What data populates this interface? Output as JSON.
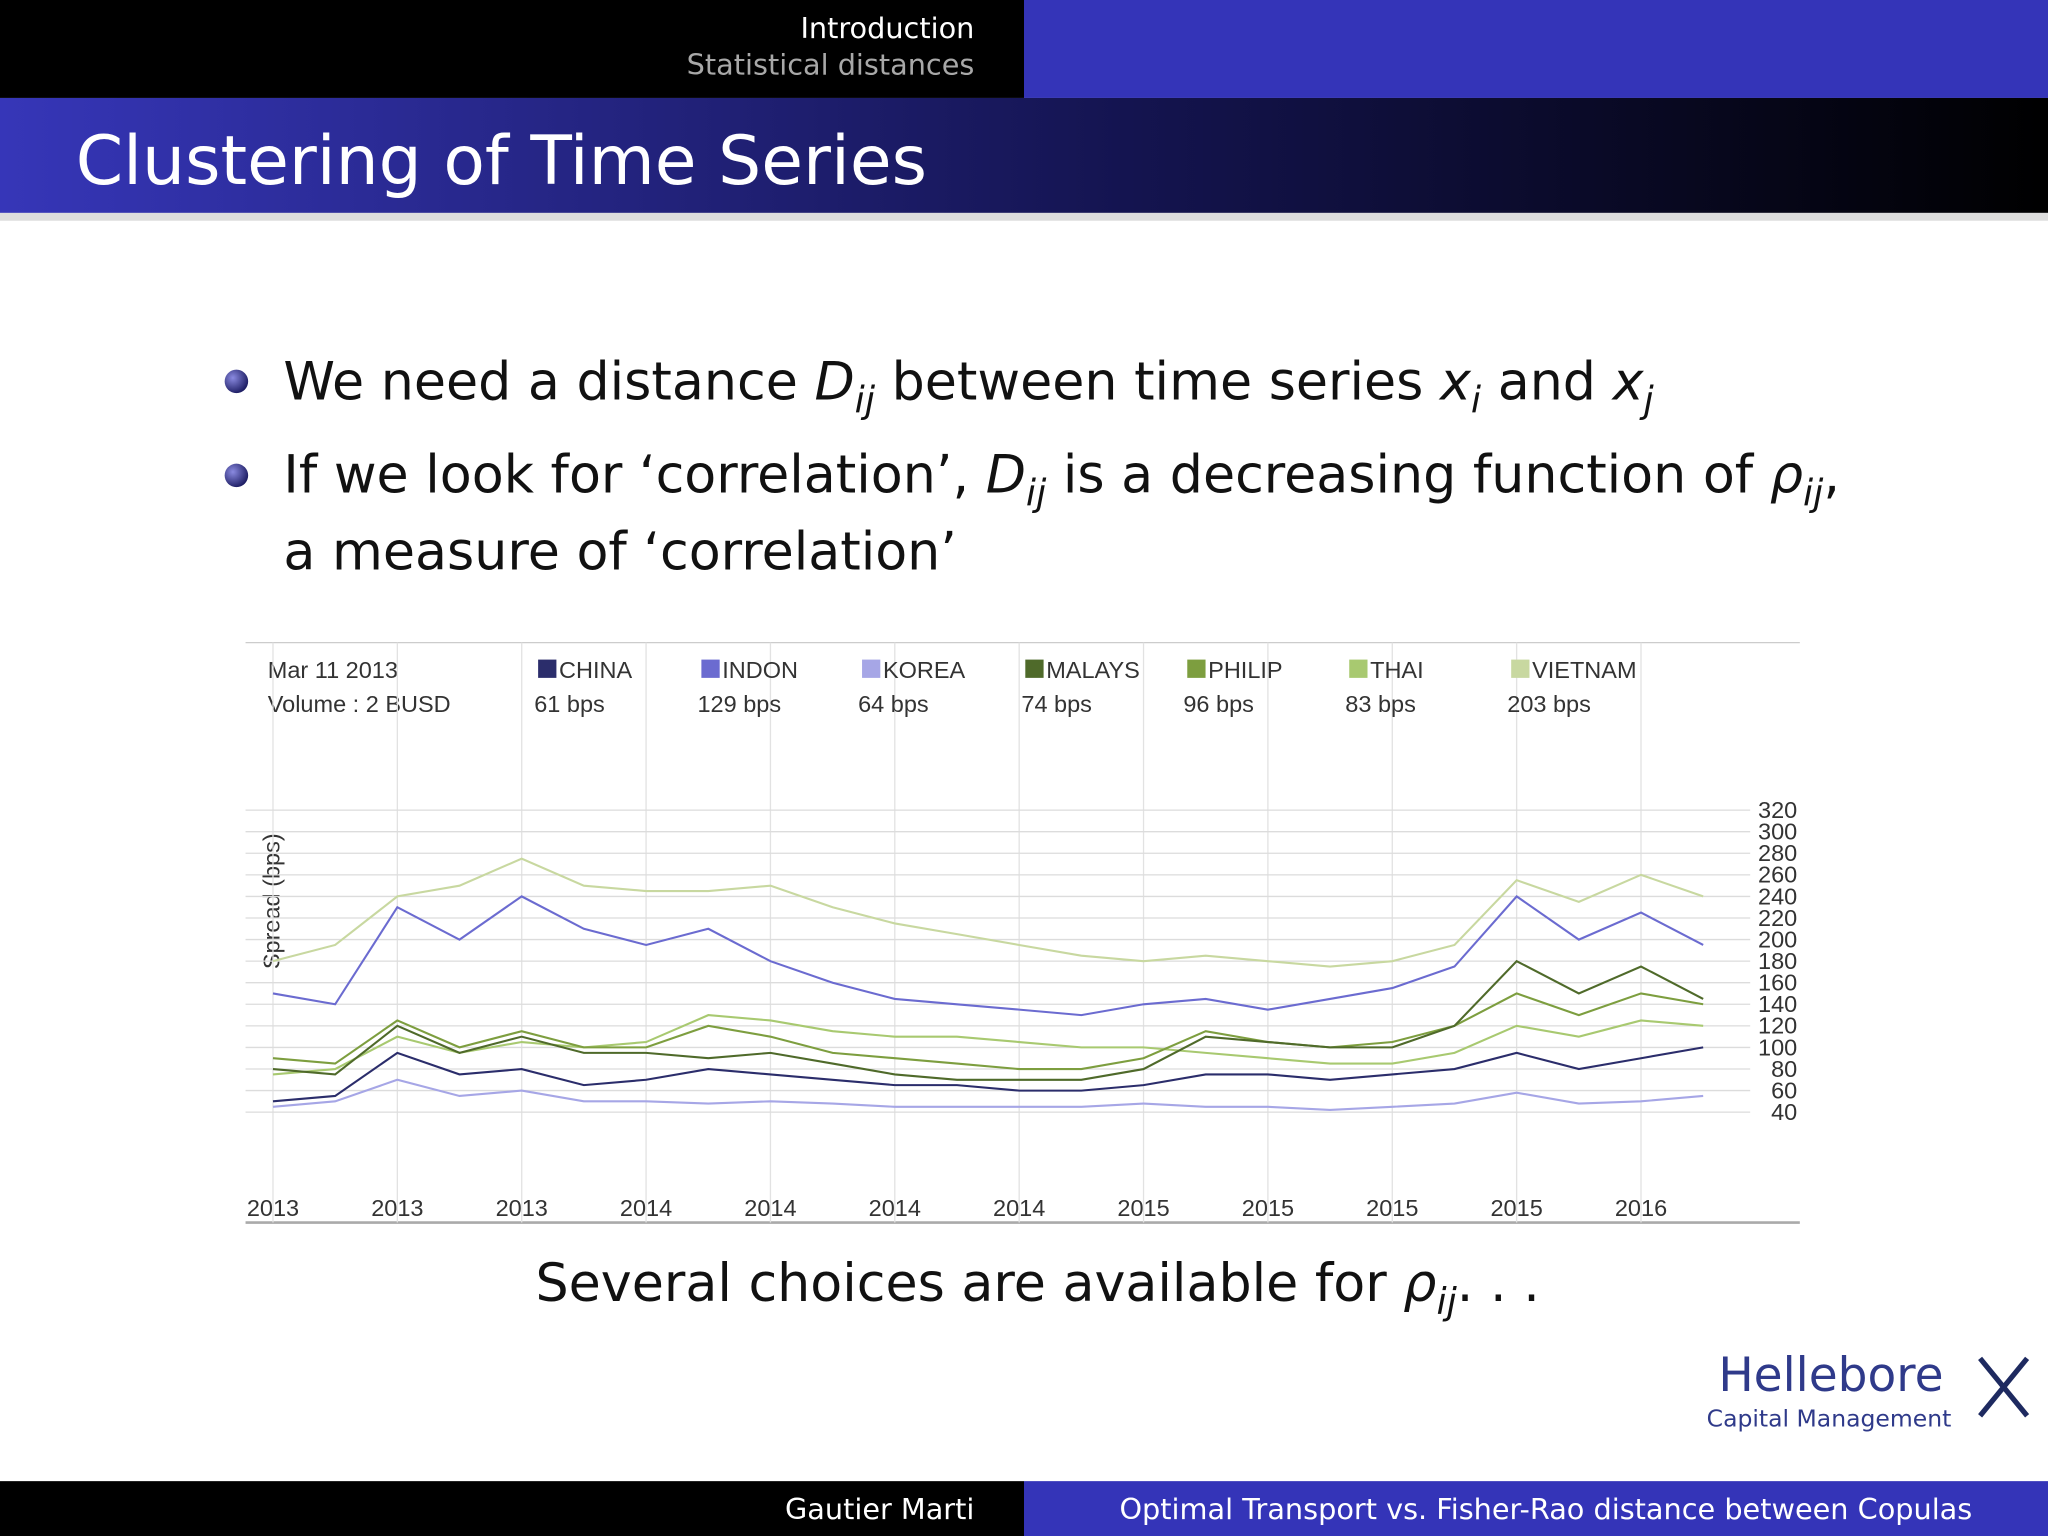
{
  "header": {
    "section": "Introduction",
    "subsection": "Statistical distances"
  },
  "title": "Clustering of Time Series",
  "bullets": [
    [
      "We need a distance ",
      "D",
      "ij",
      " between time series ",
      "x",
      "i",
      " and ",
      "x",
      "j"
    ],
    [
      "If we look for ‘correlation’, ",
      "D",
      "ij",
      " is a decreasing function of ",
      "ρ",
      "ij",
      ",",
      "a measure of ‘correlation’"
    ]
  ],
  "chart_data": {
    "type": "line",
    "date": "Mar 11 2013",
    "volume": "Volume : 2 BUSD",
    "ylabel": "Spread (bps)",
    "categories": [
      "2013",
      null,
      "2013",
      null,
      "2013",
      null,
      "2014",
      null,
      "2014",
      null,
      "2014",
      null,
      "2014",
      null,
      "2015",
      null,
      "2015",
      null,
      "2015",
      null,
      "2015",
      null,
      "2016",
      null
    ],
    "ylim": [
      20,
      330
    ],
    "yticks": [
      40,
      60,
      80,
      100,
      120,
      140,
      160,
      180,
      200,
      220,
      240,
      260,
      280,
      300,
      320
    ],
    "grid": true,
    "series": [
      {
        "name": "CHINA",
        "reading": "61 bps",
        "color": "#2b2d6b",
        "values": [
          50,
          55,
          95,
          75,
          80,
          65,
          70,
          80,
          75,
          70,
          65,
          65,
          60,
          60,
          65,
          75,
          75,
          70,
          75,
          80,
          95,
          80,
          90,
          100
        ]
      },
      {
        "name": "INDON",
        "reading": "129 bps",
        "color": "#6b6bd0",
        "values": [
          150,
          140,
          230,
          200,
          240,
          210,
          195,
          210,
          180,
          160,
          145,
          140,
          135,
          130,
          140,
          145,
          135,
          145,
          155,
          175,
          240,
          200,
          225,
          195
        ]
      },
      {
        "name": "KOREA",
        "reading": "64 bps",
        "color": "#a6a6e6",
        "values": [
          45,
          50,
          70,
          55,
          60,
          50,
          50,
          48,
          50,
          48,
          45,
          45,
          45,
          45,
          48,
          45,
          45,
          42,
          45,
          48,
          58,
          48,
          50,
          55
        ]
      },
      {
        "name": "MALAYS",
        "reading": "74 bps",
        "color": "#4f6a2a",
        "values": [
          80,
          75,
          120,
          95,
          110,
          95,
          95,
          90,
          95,
          85,
          75,
          70,
          70,
          70,
          80,
          110,
          105,
          100,
          100,
          120,
          180,
          150,
          175,
          145
        ]
      },
      {
        "name": "PHILIP",
        "reading": "96 bps",
        "color": "#7d9e3f",
        "values": [
          90,
          85,
          125,
          100,
          115,
          100,
          100,
          120,
          110,
          95,
          90,
          85,
          80,
          80,
          90,
          115,
          105,
          100,
          105,
          120,
          150,
          130,
          150,
          140
        ]
      },
      {
        "name": "THAI",
        "reading": "83 bps",
        "color": "#a8c970",
        "values": [
          75,
          80,
          110,
          95,
          105,
          100,
          105,
          130,
          125,
          115,
          110,
          110,
          105,
          100,
          100,
          95,
          90,
          85,
          85,
          95,
          120,
          110,
          125,
          120
        ]
      },
      {
        "name": "VIETNAM",
        "reading": "203 bps",
        "color": "#c8d8a0",
        "values": [
          180,
          195,
          240,
          250,
          275,
          250,
          245,
          245,
          250,
          230,
          215,
          205,
          195,
          185,
          180,
          185,
          180,
          175,
          180,
          195,
          255,
          235,
          260,
          240
        ]
      }
    ]
  },
  "caption": [
    "Several choices are available for ",
    "ρ",
    "ij",
    ". . ."
  ],
  "logo": {
    "name": "Hellebore",
    "tagline": "Capital Management"
  },
  "footer": {
    "author": "Gautier Marti",
    "talk": "Optimal Transport vs. Fisher-Rao distance between Copulas"
  }
}
